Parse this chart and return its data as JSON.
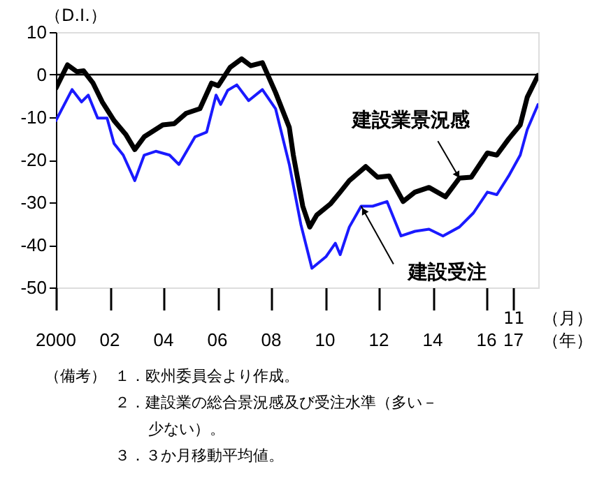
{
  "chart_data": {
    "type": "line",
    "ylabel": "（D.I.）",
    "xlabel": "（年）",
    "xlim": [
      2000,
      2017.92
    ],
    "xticks": [
      {
        "value": 2000,
        "label": "2000"
      },
      {
        "value": 2002,
        "label": "02"
      },
      {
        "value": 2004,
        "label": "04"
      },
      {
        "value": 2006,
        "label": "06"
      },
      {
        "value": 2008,
        "label": "08"
      },
      {
        "value": 2010,
        "label": "10"
      },
      {
        "value": 2012,
        "label": "12"
      },
      {
        "value": 2014,
        "label": "14"
      },
      {
        "value": 2016,
        "label": "16"
      },
      {
        "value": 2017,
        "label": "17"
      }
    ],
    "ylim": [
      -50,
      10
    ],
    "yticks": [
      -50,
      -40,
      -30,
      -20,
      -10,
      0,
      10
    ],
    "grid": false,
    "legend": false,
    "marker": "none",
    "line_style": "solid",
    "ref_lines": [
      {
        "axis": "y",
        "value": 0,
        "color": "#000000"
      }
    ],
    "series": [
      {
        "name": "建設業景況感",
        "color": "#000000",
        "x": [
          2000.0,
          2000.43,
          2000.78,
          2001.03,
          2001.38,
          2001.72,
          2002.16,
          2002.59,
          2002.93,
          2003.28,
          2003.97,
          2004.4,
          2004.83,
          2005.35,
          2005.78,
          2006.03,
          2006.47,
          2006.9,
          2007.24,
          2007.67,
          2008.16,
          2008.67,
          2008.82,
          2009.17,
          2009.43,
          2009.69,
          2010.21,
          2010.56,
          2010.9,
          2011.51,
          2011.95,
          2012.38,
          2012.9,
          2013.34,
          2013.86,
          2014.47,
          2014.99,
          2015.43,
          2016.03,
          2016.38,
          2016.82,
          2017.25,
          2017.51,
          2017.91
        ],
        "values": [
          -3.2,
          2.3,
          0.7,
          0.9,
          -2,
          -6.4,
          -10.8,
          -14,
          -17.6,
          -14.6,
          -11.8,
          -11.5,
          -9.1,
          -8,
          -2,
          -2.6,
          1.7,
          3.7,
          2.1,
          2.8,
          -4.2,
          -12.4,
          -18.9,
          -30.9,
          -35.8,
          -33,
          -30.3,
          -27.6,
          -24.9,
          -21.6,
          -24.1,
          -23.8,
          -29.8,
          -27.6,
          -26.5,
          -28.7,
          -24.3,
          -24.1,
          -18.4,
          -18.9,
          -15.1,
          -11.8,
          -5.3,
          -0.2
        ]
      },
      {
        "name": "建設受注",
        "color": "#1a1aff",
        "x": [
          2000.0,
          2000.6,
          2000.95,
          2001.2,
          2001.55,
          2001.9,
          2002.16,
          2002.5,
          2002.93,
          2003.28,
          2003.71,
          2004.22,
          2004.57,
          2005.17,
          2005.6,
          2005.95,
          2006.12,
          2006.38,
          2006.72,
          2007.16,
          2007.67,
          2008.16,
          2008.67,
          2009.1,
          2009.51,
          2010.03,
          2010.38,
          2010.56,
          2010.9,
          2011.34,
          2011.77,
          2012.3,
          2012.82,
          2013.34,
          2013.86,
          2014.38,
          2014.99,
          2015.51,
          2016.03,
          2016.38,
          2016.82,
          2017.25,
          2017.51,
          2017.91
        ],
        "values": [
          -10.8,
          -3.5,
          -6.4,
          -4.8,
          -10.2,
          -10.2,
          -16.2,
          -18.9,
          -24.9,
          -18.9,
          -18,
          -18.9,
          -21.1,
          -14.6,
          -13.5,
          -4.8,
          -7,
          -3.7,
          -2.4,
          -6.1,
          -3.5,
          -8,
          -21.1,
          -35.2,
          -45.5,
          -42.8,
          -39.6,
          -42.3,
          -35.8,
          -30.9,
          -30.9,
          -29.8,
          -37.9,
          -36.8,
          -36.3,
          -37.9,
          -35.8,
          -32.5,
          -27.6,
          -28.2,
          -23.8,
          -18.9,
          -12.9,
          -7
        ]
      }
    ],
    "annotations": [
      "11",
      "（月）",
      "（備考）",
      "１．欧州委員会より作成。",
      "２．建設業の総合景況感及び受注水準（多い－少ない）。",
      "３．３か月移動平均値。"
    ]
  }
}
